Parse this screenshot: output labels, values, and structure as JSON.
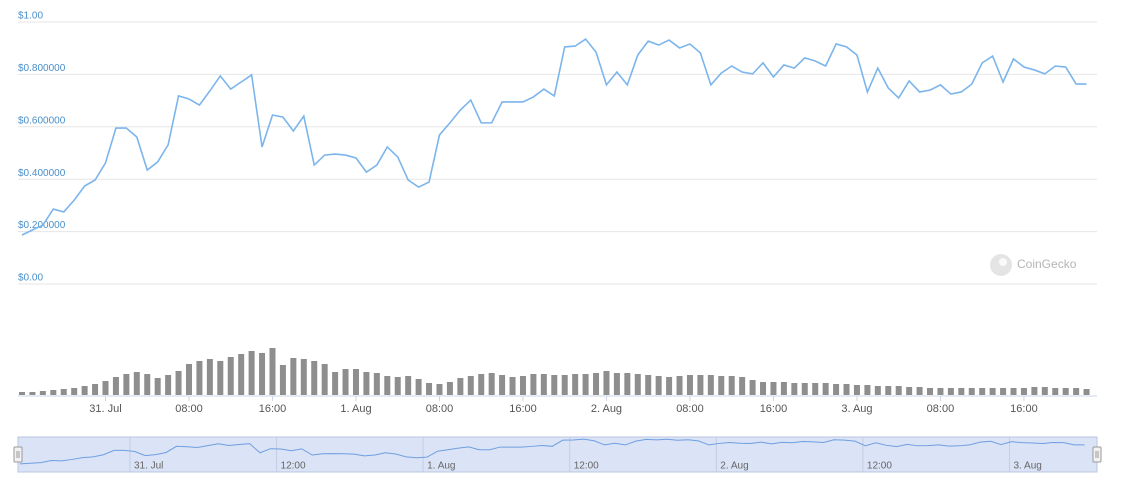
{
  "chart_data": [
    {
      "type": "line",
      "x": [
        0,
        1,
        2,
        3,
        4,
        5,
        6,
        7,
        8,
        9,
        10,
        11,
        12,
        13,
        14,
        15,
        16,
        17,
        18,
        19,
        20,
        21,
        22,
        23,
        24,
        25,
        26,
        27,
        28,
        29,
        30,
        31,
        32,
        33,
        34,
        35,
        36,
        37,
        38,
        39,
        40,
        41,
        42,
        43,
        44,
        45,
        46,
        47,
        48,
        49,
        50,
        51,
        52,
        53,
        54,
        55,
        56,
        57,
        58,
        59,
        60,
        61,
        62,
        63,
        64,
        65,
        66,
        67,
        68,
        69,
        70,
        71,
        72,
        73,
        74,
        75,
        76,
        77,
        78,
        79,
        80,
        81,
        82,
        83,
        84,
        85,
        86,
        87,
        88,
        89,
        90,
        91,
        92,
        93,
        94,
        95,
        96,
        97,
        98,
        99,
        100,
        101,
        102
      ],
      "values": [
        0.187,
        0.206,
        0.225,
        0.286,
        0.275,
        0.32,
        0.374,
        0.397,
        0.462,
        0.595,
        0.595,
        0.561,
        0.435,
        0.466,
        0.531,
        0.718,
        0.706,
        0.683,
        0.737,
        0.794,
        0.744,
        0.771,
        0.798,
        0.523,
        0.645,
        0.637,
        0.584,
        0.641,
        0.454,
        0.492,
        0.496,
        0.492,
        0.481,
        0.427,
        0.454,
        0.523,
        0.485,
        0.397,
        0.37,
        0.389,
        0.569,
        0.615,
        0.664,
        0.702,
        0.615,
        0.615,
        0.695,
        0.695,
        0.695,
        0.714,
        0.744,
        0.718,
        0.905,
        0.908,
        0.935,
        0.885,
        0.76,
        0.809,
        0.76,
        0.874,
        0.927,
        0.912,
        0.931,
        0.901,
        0.916,
        0.882,
        0.76,
        0.805,
        0.832,
        0.809,
        0.802,
        0.844,
        0.79,
        0.836,
        0.824,
        0.863,
        0.851,
        0.832,
        0.916,
        0.905,
        0.874,
        0.733,
        0.824,
        0.748,
        0.71,
        0.775,
        0.733,
        0.74,
        0.76,
        0.725,
        0.733,
        0.763,
        0.844,
        0.87,
        0.771,
        0.859,
        0.828,
        0.817,
        0.802,
        0.832,
        0.828,
        0.763,
        0.763
      ],
      "color": "#7cb5ec",
      "xlim": [
        0,
        103
      ],
      "xticks": [
        {
          "value": 8,
          "label": "31. Jul"
        },
        {
          "value": 16,
          "label": "08:00"
        },
        {
          "value": 24,
          "label": "16:00"
        },
        {
          "value": 32,
          "label": "1. Aug"
        },
        {
          "value": 40,
          "label": "08:00"
        },
        {
          "value": 48,
          "label": "16:00"
        },
        {
          "value": 56,
          "label": "2. Aug"
        },
        {
          "value": 64,
          "label": "08:00"
        },
        {
          "value": 72,
          "label": "16:00"
        },
        {
          "value": 80,
          "label": "3. Aug"
        },
        {
          "value": 88,
          "label": "08:00"
        },
        {
          "value": 96,
          "label": "16:00"
        }
      ],
      "ylim": [
        0,
        1
      ],
      "yticks": [
        {
          "value": 0,
          "label": "$0.00"
        },
        {
          "value": 0.2,
          "label": "$0.200000"
        },
        {
          "value": 0.4,
          "label": "$0.400000"
        },
        {
          "value": 0.6,
          "label": "$0.600000"
        },
        {
          "value": 0.8,
          "label": "$0.800000"
        },
        {
          "value": 1,
          "label": "$1.00"
        }
      ],
      "grid": true,
      "watermark": "CoinGecko"
    },
    {
      "type": "bar",
      "x": [
        0,
        1,
        2,
        3,
        4,
        5,
        6,
        7,
        8,
        9,
        10,
        11,
        12,
        13,
        14,
        15,
        16,
        17,
        18,
        19,
        20,
        21,
        22,
        23,
        24,
        25,
        26,
        27,
        28,
        29,
        30,
        31,
        32,
        33,
        34,
        35,
        36,
        37,
        38,
        39,
        40,
        41,
        42,
        43,
        44,
        45,
        46,
        47,
        48,
        49,
        50,
        51,
        52,
        53,
        54,
        55,
        56,
        57,
        58,
        59,
        60,
        61,
        62,
        63,
        64,
        65,
        66,
        67,
        68,
        69,
        70,
        71,
        72,
        73,
        74,
        75,
        76,
        77,
        78,
        79,
        80,
        81,
        82,
        83,
        84,
        85,
        86,
        87,
        88,
        89,
        90,
        91,
        92,
        93,
        94,
        95,
        96,
        97,
        98,
        99,
        100,
        101,
        102
      ],
      "values": [
        3,
        3,
        4,
        5,
        6,
        7,
        9,
        11,
        14,
        18,
        21,
        23,
        21,
        17,
        20,
        24,
        31,
        34,
        36,
        34,
        38,
        41,
        44,
        42,
        47,
        30,
        37,
        36,
        34,
        31,
        23,
        26,
        26,
        23,
        22,
        19,
        18,
        19,
        16,
        12,
        11,
        13,
        17,
        19,
        21,
        22,
        20,
        18,
        19,
        21,
        21,
        20,
        20,
        21,
        21,
        22,
        24,
        22,
        22,
        21,
        20,
        19,
        18,
        19,
        20,
        20,
        20,
        19,
        19,
        18,
        15,
        13,
        13,
        13,
        12,
        12,
        12,
        12,
        11,
        11,
        10,
        10,
        9,
        9,
        9,
        8,
        8,
        7,
        7,
        7,
        7,
        7,
        7,
        7,
        7,
        7,
        7,
        8,
        8,
        7,
        7,
        7,
        6
      ],
      "color": "#8e8e8e",
      "xlim": [
        0,
        103
      ],
      "ylim": [
        0,
        50
      ]
    },
    {
      "type": "navigator",
      "color": "#6f9fe0",
      "xlim": [
        -1,
        87
      ],
      "xticks": [
        {
          "value": 8,
          "label": "31. Jul"
        },
        {
          "value": 20,
          "label": "12:00"
        },
        {
          "value": 32,
          "label": "1. Aug"
        },
        {
          "value": 44,
          "label": "12:00"
        },
        {
          "value": 56,
          "label": "2. Aug"
        },
        {
          "value": 68,
          "label": "12:00"
        },
        {
          "value": 80,
          "label": "3. Aug"
        }
      ]
    }
  ]
}
